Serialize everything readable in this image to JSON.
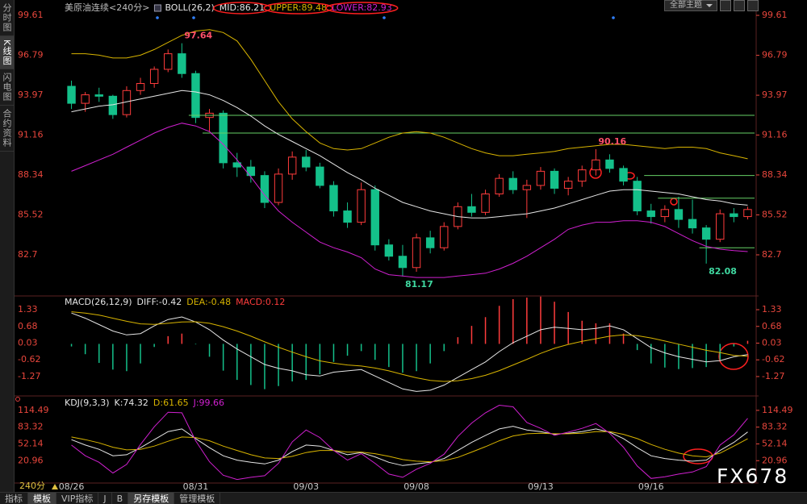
{
  "sidebar": [
    "分时图",
    "K线图",
    "闪电图",
    "合约资料"
  ],
  "toolbar": {
    "theme": "全部主题"
  },
  "bottom": {
    "period": "240分",
    "tabs": [
      "指标",
      "模板",
      "VIP指标",
      "J",
      "B",
      "另存模板",
      "管理模板"
    ]
  },
  "watermark": "FX678",
  "chart_data": [
    {
      "type": "candlestick",
      "title": "美原油连续<240分>",
      "indicator": "BOLL(26,2)",
      "categories": [
        "08/26",
        null,
        null,
        null,
        null,
        null,
        null,
        null,
        null,
        "08/31",
        null,
        null,
        null,
        null,
        null,
        null,
        null,
        "09/03",
        null,
        null,
        null,
        null,
        null,
        null,
        null,
        "09/08",
        null,
        null,
        null,
        null,
        null,
        null,
        null,
        null,
        "09/13",
        null,
        null,
        null,
        null,
        null,
        null,
        null,
        "09/16",
        null,
        null,
        null,
        null,
        null,
        null,
        null
      ],
      "candles": [
        [
          94.6,
          95.0,
          93.0,
          93.4
        ],
        [
          93.4,
          94.2,
          92.8,
          94.0
        ],
        [
          94.0,
          94.5,
          93.5,
          93.9
        ],
        [
          93.9,
          94.0,
          92.3,
          92.6
        ],
        [
          92.6,
          94.6,
          92.4,
          94.3
        ],
        [
          94.3,
          95.2,
          94.0,
          94.8
        ],
        [
          94.8,
          96.0,
          94.5,
          95.8
        ],
        [
          95.8,
          97.2,
          95.6,
          96.9
        ],
        [
          96.9,
          97.64,
          95.2,
          95.5
        ],
        [
          95.5,
          95.7,
          92.0,
          92.4
        ],
        [
          92.4,
          93.0,
          91.4,
          92.7
        ],
        [
          92.7,
          92.9,
          88.8,
          89.2
        ],
        [
          89.2,
          89.9,
          88.2,
          88.9
        ],
        [
          88.9,
          89.4,
          87.8,
          88.3
        ],
        [
          88.3,
          88.6,
          86.0,
          86.4
        ],
        [
          86.4,
          88.8,
          86.2,
          88.4
        ],
        [
          88.4,
          90.0,
          88.0,
          89.6
        ],
        [
          89.6,
          90.1,
          88.6,
          88.9
        ],
        [
          88.9,
          89.2,
          87.4,
          87.6
        ],
        [
          87.6,
          87.9,
          85.4,
          85.8
        ],
        [
          85.8,
          86.4,
          84.6,
          85.0
        ],
        [
          85.0,
          87.8,
          84.8,
          87.3
        ],
        [
          87.3,
          87.6,
          83.0,
          83.4
        ],
        [
          83.4,
          83.8,
          82.3,
          82.6
        ],
        [
          82.6,
          83.4,
          81.17,
          81.8
        ],
        [
          81.8,
          84.2,
          81.5,
          83.9
        ],
        [
          83.9,
          84.4,
          82.8,
          83.2
        ],
        [
          83.2,
          85.0,
          83.0,
          84.7
        ],
        [
          84.7,
          86.4,
          84.5,
          86.1
        ],
        [
          86.1,
          87.0,
          85.4,
          85.7
        ],
        [
          85.7,
          87.3,
          85.5,
          87.0
        ],
        [
          87.0,
          88.4,
          86.8,
          88.1
        ],
        [
          88.1,
          88.6,
          87.0,
          87.3
        ],
        [
          87.3,
          88.0,
          85.3,
          87.6
        ],
        [
          87.6,
          88.9,
          87.3,
          88.6
        ],
        [
          88.6,
          88.8,
          87.0,
          87.4
        ],
        [
          87.4,
          88.2,
          86.9,
          87.9
        ],
        [
          87.9,
          89.0,
          87.5,
          88.7
        ],
        [
          88.7,
          90.16,
          88.3,
          89.4
        ],
        [
          89.4,
          89.8,
          88.5,
          88.8
        ],
        [
          88.8,
          89.0,
          87.6,
          87.9
        ],
        [
          87.9,
          88.2,
          85.5,
          85.8
        ],
        [
          85.8,
          86.3,
          84.9,
          85.4
        ],
        [
          85.4,
          86.2,
          85.0,
          85.9
        ],
        [
          85.9,
          86.8,
          84.6,
          85.2
        ],
        [
          85.2,
          86.6,
          84.2,
          84.6
        ],
        [
          84.6,
          84.8,
          82.08,
          83.8
        ],
        [
          83.8,
          85.9,
          83.6,
          85.6
        ],
        [
          85.6,
          86.0,
          85.0,
          85.4
        ],
        [
          85.4,
          86.1,
          85.2,
          85.9
        ]
      ],
      "up_color": "#ff3c3c",
      "down_color": "#14c08a",
      "series": [
        {
          "name": "MID:86.21",
          "color": "#e6e6e6",
          "values": [
            92.8,
            93.0,
            93.2,
            93.3,
            93.5,
            93.7,
            93.9,
            94.1,
            94.3,
            94.2,
            94.0,
            93.6,
            93.1,
            92.5,
            91.8,
            91.2,
            90.7,
            90.2,
            89.7,
            89.1,
            88.5,
            88.0,
            87.4,
            86.9,
            86.4,
            86.1,
            85.8,
            85.6,
            85.4,
            85.3,
            85.3,
            85.4,
            85.5,
            85.6,
            85.8,
            86.0,
            86.3,
            86.6,
            86.9,
            87.2,
            87.3,
            87.3,
            87.2,
            87.1,
            87.0,
            86.8,
            86.6,
            86.5,
            86.3,
            86.21
          ]
        },
        {
          "name": "UPPER:89.48",
          "color": "#d8b400",
          "values": [
            96.9,
            96.9,
            96.8,
            96.6,
            96.6,
            96.8,
            97.2,
            97.7,
            98.2,
            98.5,
            98.6,
            98.4,
            97.8,
            96.5,
            95.0,
            93.5,
            92.3,
            91.4,
            90.6,
            90.2,
            90.1,
            90.2,
            90.6,
            91.0,
            91.3,
            91.4,
            91.3,
            91.0,
            90.6,
            90.2,
            89.9,
            89.7,
            89.7,
            89.8,
            89.9,
            90.0,
            90.2,
            90.3,
            90.4,
            90.5,
            90.5,
            90.4,
            90.3,
            90.2,
            90.3,
            90.3,
            90.2,
            89.9,
            89.7,
            89.48
          ]
        },
        {
          "name": "LOWER:82.93",
          "color": "#d020d0",
          "values": [
            88.6,
            89.0,
            89.4,
            89.8,
            90.3,
            90.8,
            91.3,
            91.7,
            92.0,
            91.8,
            91.4,
            90.5,
            89.4,
            88.2,
            86.9,
            85.8,
            85.0,
            84.3,
            83.6,
            83.2,
            82.9,
            82.5,
            81.7,
            81.3,
            81.2,
            81.1,
            81.1,
            81.1,
            81.2,
            81.3,
            81.4,
            81.7,
            82.1,
            82.6,
            83.2,
            83.8,
            84.5,
            84.8,
            85.0,
            85.0,
            85.1,
            85.1,
            85.0,
            84.7,
            84.2,
            83.7,
            83.3,
            83.1,
            83.0,
            82.93
          ]
        }
      ],
      "hlines": [
        {
          "start": 9,
          "value": 92.55
        },
        {
          "start": 10,
          "value": 91.3
        },
        {
          "start": 42,
          "value": 88.3
        },
        {
          "start": 43,
          "value": 86.7
        },
        {
          "start": 46,
          "value": 83.2
        }
      ],
      "hline_color": "#66d066",
      "high_labels": [
        8,
        38
      ],
      "low_labels": [
        24,
        46
      ],
      "high_label_color": "#ff4f6a",
      "low_label_color": "#3fd8a0",
      "ylim": [
        80.08,
        100.41
      ],
      "yticks": [
        99.61,
        96.79,
        93.97,
        91.16,
        88.34,
        85.52,
        82.7
      ]
    },
    {
      "type": "combo",
      "indicator": "MACD(26,12,9)",
      "series": [
        {
          "name": "DIFF:-0.42",
          "color": "#e6e6e6",
          "values": [
            1.2,
            1.0,
            0.75,
            0.5,
            0.35,
            0.4,
            0.7,
            0.95,
            1.05,
            0.85,
            0.55,
            0.15,
            -0.2,
            -0.5,
            -0.8,
            -0.95,
            -1.05,
            -1.2,
            -1.25,
            -1.1,
            -1.05,
            -1.0,
            -1.25,
            -1.5,
            -1.75,
            -1.85,
            -1.8,
            -1.6,
            -1.3,
            -1.0,
            -0.7,
            -0.3,
            0.05,
            0.3,
            0.55,
            0.65,
            0.6,
            0.55,
            0.6,
            0.7,
            0.55,
            0.2,
            -0.15,
            -0.35,
            -0.5,
            -0.6,
            -0.7,
            -0.65,
            -0.5,
            -0.42
          ]
        },
        {
          "name": "DEA:-0.48",
          "color": "#d8b400",
          "values": [
            1.25,
            1.2,
            1.12,
            1.0,
            0.88,
            0.78,
            0.76,
            0.8,
            0.85,
            0.86,
            0.8,
            0.67,
            0.5,
            0.3,
            0.08,
            -0.13,
            -0.32,
            -0.5,
            -0.66,
            -0.75,
            -0.82,
            -0.86,
            -0.94,
            -1.05,
            -1.19,
            -1.32,
            -1.42,
            -1.46,
            -1.43,
            -1.35,
            -1.22,
            -1.04,
            -0.82,
            -0.6,
            -0.37,
            -0.17,
            -0.02,
            0.1,
            0.2,
            0.3,
            0.35,
            0.32,
            0.23,
            0.11,
            -0.01,
            -0.13,
            -0.25,
            -0.34,
            -0.45,
            -0.48
          ]
        },
        {
          "name": "MACD:0.12",
          "color": "#ff3c3c",
          "down_color": "#14c08a",
          "kind": "bar",
          "values": [
            -0.1,
            -0.4,
            -0.74,
            -1.0,
            -1.06,
            -0.76,
            -0.12,
            0.3,
            0.4,
            -0.02,
            -0.5,
            -1.04,
            -1.4,
            -1.6,
            -1.76,
            -1.64,
            -1.46,
            -1.4,
            -1.18,
            -0.7,
            -0.46,
            -0.28,
            -0.62,
            -0.9,
            -1.12,
            -1.06,
            -0.76,
            -0.28,
            0.26,
            0.7,
            1.04,
            1.48,
            1.74,
            1.8,
            1.84,
            1.64,
            1.24,
            0.9,
            0.8,
            0.8,
            0.4,
            -0.24,
            -0.76,
            -0.92,
            -0.98,
            -0.94,
            -0.9,
            -0.62,
            -0.1,
            0.12
          ]
        }
      ],
      "ylim": [
        -1.93,
        1.77
      ],
      "yticks": [
        1.33,
        0.68,
        0.03,
        -0.62,
        -1.27
      ]
    },
    {
      "type": "line",
      "indicator": "KDJ(9,3,3)",
      "series": [
        {
          "name": "K:74.32",
          "color": "#e6e6e6",
          "values": [
            60,
            50,
            42,
            30,
            32,
            45,
            60,
            75,
            80,
            62,
            45,
            30,
            22,
            18,
            15,
            22,
            38,
            50,
            48,
            40,
            32,
            36,
            28,
            18,
            12,
            15,
            18,
            25,
            40,
            55,
            68,
            80,
            85,
            78,
            75,
            70,
            72,
            75,
            80,
            74,
            62,
            45,
            30,
            25,
            22,
            20,
            22,
            40,
            55,
            74.32
          ]
        },
        {
          "name": "D:61.65",
          "color": "#d8b400",
          "values": [
            65,
            60,
            54,
            46,
            41,
            42,
            48,
            57,
            65,
            64,
            58,
            48,
            40,
            32,
            26,
            25,
            29,
            36,
            40,
            40,
            37,
            37,
            34,
            29,
            23,
            20,
            19,
            21,
            27,
            37,
            47,
            58,
            67,
            71,
            72,
            71,
            71,
            72,
            75,
            75,
            70,
            62,
            51,
            42,
            35,
            30,
            28,
            35,
            48,
            61.65
          ]
        },
        {
          "name": "J:99.66",
          "color": "#d020d0",
          "values": [
            50,
            30,
            18,
            -2,
            14,
            51,
            84,
            111,
            110,
            58,
            19,
            -6,
            -14,
            -10,
            -7,
            16,
            56,
            78,
            64,
            40,
            22,
            34,
            16,
            -4,
            -10,
            5,
            16,
            33,
            66,
            91,
            110,
            124,
            121,
            92,
            81,
            68,
            74,
            81,
            90,
            72,
            46,
            11,
            -12,
            -9,
            -4,
            0,
            10,
            50,
            69,
            99.66
          ]
        }
      ],
      "ylim": [
        -19.1,
        135.3
      ],
      "yticks": [
        114.49,
        83.32,
        52.14,
        20.96
      ]
    }
  ]
}
